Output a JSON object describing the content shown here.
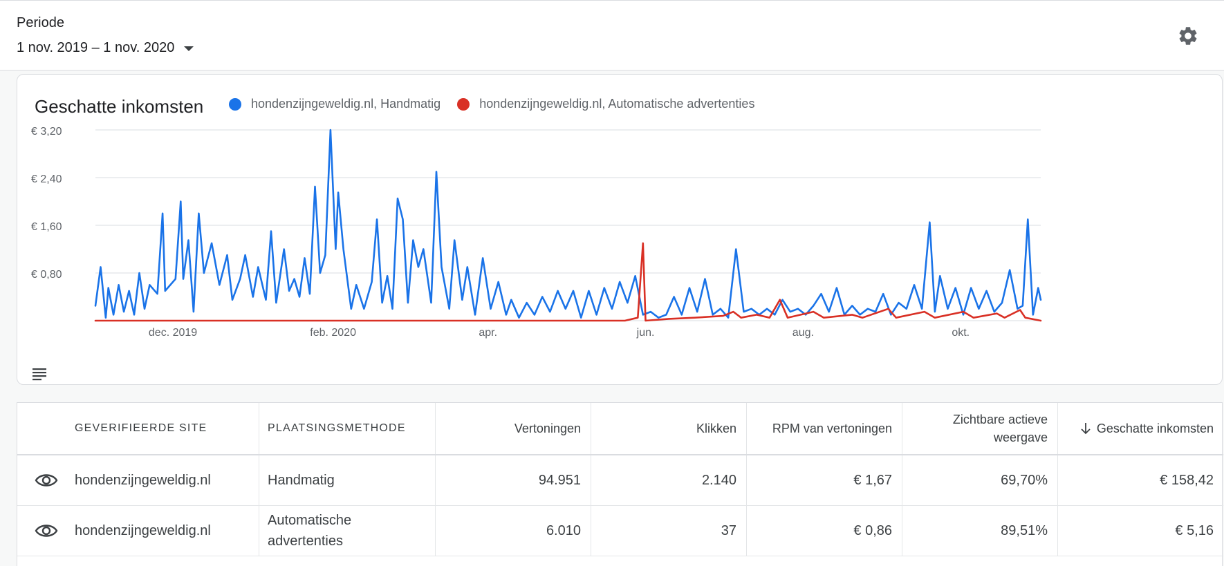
{
  "period": {
    "label": "Periode",
    "value": "1 nov. 2019 – 1 nov. 2020"
  },
  "icons": {
    "settings": "gear-icon",
    "dropdown": "caret-down-icon",
    "table_toggle": "list-icon",
    "visibility": "eye-icon",
    "sort": "arrow-down-icon"
  },
  "colors": {
    "handmatig": "#1a73e8",
    "automatisch": "#d93025"
  },
  "chart_data": {
    "type": "line",
    "title": "Geschatte inkomsten",
    "y_ticks": [
      "€ 3,20",
      "€ 2,40",
      "€ 1,60",
      "€ 0,80"
    ],
    "y_tick_values": [
      3.2,
      2.4,
      1.6,
      0.8
    ],
    "ylim": [
      0,
      3.2
    ],
    "x_ticks": [
      "dec. 2019",
      "feb. 2020",
      "apr.",
      "jun.",
      "aug.",
      "okt."
    ],
    "x_tick_dates": [
      "2019-12-01",
      "2020-02-01",
      "2020-04-01",
      "2020-06-01",
      "2020-08-01",
      "2020-10-01"
    ],
    "xlim": [
      "2019-11-01",
      "2020-11-01"
    ],
    "grid": true,
    "legend_position": "top",
    "series": [
      {
        "name": "hondenzijngeweldig.nl, Handmatig",
        "color": "#1a73e8",
        "points": [
          [
            "2019-11-01",
            0.25
          ],
          [
            "2019-11-03",
            0.9
          ],
          [
            "2019-11-05",
            0.05
          ],
          [
            "2019-11-06",
            0.55
          ],
          [
            "2019-11-08",
            0.1
          ],
          [
            "2019-11-10",
            0.6
          ],
          [
            "2019-11-12",
            0.15
          ],
          [
            "2019-11-14",
            0.5
          ],
          [
            "2019-11-16",
            0.1
          ],
          [
            "2019-11-18",
            0.8
          ],
          [
            "2019-11-20",
            0.2
          ],
          [
            "2019-11-22",
            0.6
          ],
          [
            "2019-11-25",
            0.45
          ],
          [
            "2019-11-27",
            1.8
          ],
          [
            "2019-11-28",
            0.5
          ],
          [
            "2019-12-02",
            0.7
          ],
          [
            "2019-12-04",
            2.0
          ],
          [
            "2019-12-05",
            0.7
          ],
          [
            "2019-12-07",
            1.35
          ],
          [
            "2019-12-09",
            0.15
          ],
          [
            "2019-12-11",
            1.8
          ],
          [
            "2019-12-13",
            0.8
          ],
          [
            "2019-12-16",
            1.3
          ],
          [
            "2019-12-19",
            0.6
          ],
          [
            "2019-12-22",
            1.1
          ],
          [
            "2019-12-24",
            0.35
          ],
          [
            "2019-12-27",
            0.7
          ],
          [
            "2019-12-29",
            1.1
          ],
          [
            "2020-01-01",
            0.4
          ],
          [
            "2020-01-03",
            0.9
          ],
          [
            "2020-01-06",
            0.35
          ],
          [
            "2020-01-08",
            1.5
          ],
          [
            "2020-01-10",
            0.3
          ],
          [
            "2020-01-13",
            1.2
          ],
          [
            "2020-01-15",
            0.5
          ],
          [
            "2020-01-17",
            0.7
          ],
          [
            "2020-01-19",
            0.4
          ],
          [
            "2020-01-21",
            1.05
          ],
          [
            "2020-01-23",
            0.45
          ],
          [
            "2020-01-25",
            2.25
          ],
          [
            "2020-01-27",
            0.8
          ],
          [
            "2020-01-29",
            1.1
          ],
          [
            "2020-01-31",
            3.2
          ],
          [
            "2020-02-02",
            1.2
          ],
          [
            "2020-02-03",
            2.15
          ],
          [
            "2020-02-05",
            1.2
          ],
          [
            "2020-02-08",
            0.2
          ],
          [
            "2020-02-10",
            0.6
          ],
          [
            "2020-02-13",
            0.2
          ],
          [
            "2020-02-16",
            0.65
          ],
          [
            "2020-02-18",
            1.7
          ],
          [
            "2020-02-20",
            0.3
          ],
          [
            "2020-02-22",
            0.75
          ],
          [
            "2020-02-24",
            0.2
          ],
          [
            "2020-02-26",
            2.05
          ],
          [
            "2020-02-28",
            1.7
          ],
          [
            "2020-03-01",
            0.3
          ],
          [
            "2020-03-03",
            1.35
          ],
          [
            "2020-03-05",
            0.9
          ],
          [
            "2020-03-07",
            1.2
          ],
          [
            "2020-03-10",
            0.3
          ],
          [
            "2020-03-12",
            2.5
          ],
          [
            "2020-03-14",
            0.9
          ],
          [
            "2020-03-17",
            0.2
          ],
          [
            "2020-03-19",
            1.35
          ],
          [
            "2020-03-22",
            0.35
          ],
          [
            "2020-03-24",
            0.9
          ],
          [
            "2020-03-27",
            0.1
          ],
          [
            "2020-03-30",
            1.05
          ],
          [
            "2020-04-02",
            0.2
          ],
          [
            "2020-04-05",
            0.65
          ],
          [
            "2020-04-08",
            0.1
          ],
          [
            "2020-04-10",
            0.35
          ],
          [
            "2020-04-13",
            0.05
          ],
          [
            "2020-04-16",
            0.3
          ],
          [
            "2020-04-19",
            0.1
          ],
          [
            "2020-04-22",
            0.4
          ],
          [
            "2020-04-25",
            0.15
          ],
          [
            "2020-04-28",
            0.5
          ],
          [
            "2020-05-01",
            0.2
          ],
          [
            "2020-05-04",
            0.5
          ],
          [
            "2020-05-07",
            0.05
          ],
          [
            "2020-05-10",
            0.5
          ],
          [
            "2020-05-13",
            0.1
          ],
          [
            "2020-05-16",
            0.55
          ],
          [
            "2020-05-19",
            0.2
          ],
          [
            "2020-05-22",
            0.65
          ],
          [
            "2020-05-25",
            0.3
          ],
          [
            "2020-05-28",
            0.75
          ],
          [
            "2020-05-31",
            0.1
          ],
          [
            "2020-06-03",
            0.15
          ],
          [
            "2020-06-06",
            0.05
          ],
          [
            "2020-06-09",
            0.1
          ],
          [
            "2020-06-12",
            0.4
          ],
          [
            "2020-06-15",
            0.1
          ],
          [
            "2020-06-18",
            0.55
          ],
          [
            "2020-06-21",
            0.15
          ],
          [
            "2020-06-24",
            0.7
          ],
          [
            "2020-06-27",
            0.1
          ],
          [
            "2020-06-30",
            0.2
          ],
          [
            "2020-07-03",
            0.05
          ],
          [
            "2020-07-06",
            1.2
          ],
          [
            "2020-07-09",
            0.15
          ],
          [
            "2020-07-12",
            0.2
          ],
          [
            "2020-07-15",
            0.1
          ],
          [
            "2020-07-18",
            0.2
          ],
          [
            "2020-07-21",
            0.1
          ],
          [
            "2020-07-24",
            0.35
          ],
          [
            "2020-07-27",
            0.15
          ],
          [
            "2020-07-30",
            0.2
          ],
          [
            "2020-08-02",
            0.1
          ],
          [
            "2020-08-05",
            0.25
          ],
          [
            "2020-08-08",
            0.45
          ],
          [
            "2020-08-11",
            0.15
          ],
          [
            "2020-08-14",
            0.55
          ],
          [
            "2020-08-17",
            0.1
          ],
          [
            "2020-08-20",
            0.25
          ],
          [
            "2020-08-23",
            0.1
          ],
          [
            "2020-08-26",
            0.2
          ],
          [
            "2020-08-29",
            0.15
          ],
          [
            "2020-09-01",
            0.45
          ],
          [
            "2020-09-04",
            0.1
          ],
          [
            "2020-09-07",
            0.3
          ],
          [
            "2020-09-10",
            0.2
          ],
          [
            "2020-09-13",
            0.6
          ],
          [
            "2020-09-16",
            0.2
          ],
          [
            "2020-09-19",
            1.65
          ],
          [
            "2020-09-21",
            0.15
          ],
          [
            "2020-09-23",
            0.75
          ],
          [
            "2020-09-26",
            0.2
          ],
          [
            "2020-09-29",
            0.55
          ],
          [
            "2020-10-02",
            0.1
          ],
          [
            "2020-10-05",
            0.55
          ],
          [
            "2020-10-08",
            0.2
          ],
          [
            "2020-10-11",
            0.5
          ],
          [
            "2020-10-14",
            0.15
          ],
          [
            "2020-10-17",
            0.3
          ],
          [
            "2020-10-20",
            0.85
          ],
          [
            "2020-10-23",
            0.2
          ],
          [
            "2020-10-25",
            0.25
          ],
          [
            "2020-10-27",
            1.7
          ],
          [
            "2020-10-29",
            0.1
          ],
          [
            "2020-10-31",
            0.55
          ],
          [
            "2020-11-01",
            0.35
          ]
        ]
      },
      {
        "name": "hondenzijngeweldig.nl, Automatische advertenties",
        "color": "#d93025",
        "points": [
          [
            "2019-11-01",
            0.0
          ],
          [
            "2020-05-24",
            0.0
          ],
          [
            "2020-05-29",
            0.05
          ],
          [
            "2020-05-31",
            1.3
          ],
          [
            "2020-06-01",
            0.0
          ],
          [
            "2020-06-10",
            0.03
          ],
          [
            "2020-06-20",
            0.05
          ],
          [
            "2020-07-01",
            0.08
          ],
          [
            "2020-07-05",
            0.15
          ],
          [
            "2020-07-08",
            0.05
          ],
          [
            "2020-07-14",
            0.1
          ],
          [
            "2020-07-19",
            0.05
          ],
          [
            "2020-07-23",
            0.35
          ],
          [
            "2020-07-26",
            0.05
          ],
          [
            "2020-08-05",
            0.15
          ],
          [
            "2020-08-09",
            0.05
          ],
          [
            "2020-08-20",
            0.1
          ],
          [
            "2020-08-24",
            0.05
          ],
          [
            "2020-09-03",
            0.2
          ],
          [
            "2020-09-06",
            0.05
          ],
          [
            "2020-09-17",
            0.15
          ],
          [
            "2020-09-21",
            0.05
          ],
          [
            "2020-10-02",
            0.15
          ],
          [
            "2020-10-06",
            0.05
          ],
          [
            "2020-10-15",
            0.12
          ],
          [
            "2020-10-18",
            0.05
          ],
          [
            "2020-10-24",
            0.18
          ],
          [
            "2020-10-26",
            0.05
          ],
          [
            "2020-11-01",
            0.0
          ]
        ]
      }
    ]
  },
  "table": {
    "headers": {
      "site": "GEVERIFIEERDE SITE",
      "method": "PLAATSINGSMETHODE",
      "impressions": "Vertoningen",
      "clicks": "Klikken",
      "rpm": "RPM van vertoningen",
      "viewable": "Zichtbare actieve weergave",
      "earnings": "Geschatte inkomsten"
    },
    "rows": [
      {
        "site": "hondenzijngeweldig.nl",
        "method": "Handmatig",
        "impressions": "94.951",
        "clicks": "2.140",
        "rpm": "€ 1,67",
        "viewable": "69,70%",
        "earnings": "€ 158,42"
      },
      {
        "site": "hondenzijngeweldig.nl",
        "method": "Automatische advertenties",
        "impressions": "6.010",
        "clicks": "37",
        "rpm": "€ 0,86",
        "viewable": "89,51%",
        "earnings": "€ 5,16"
      }
    ]
  }
}
